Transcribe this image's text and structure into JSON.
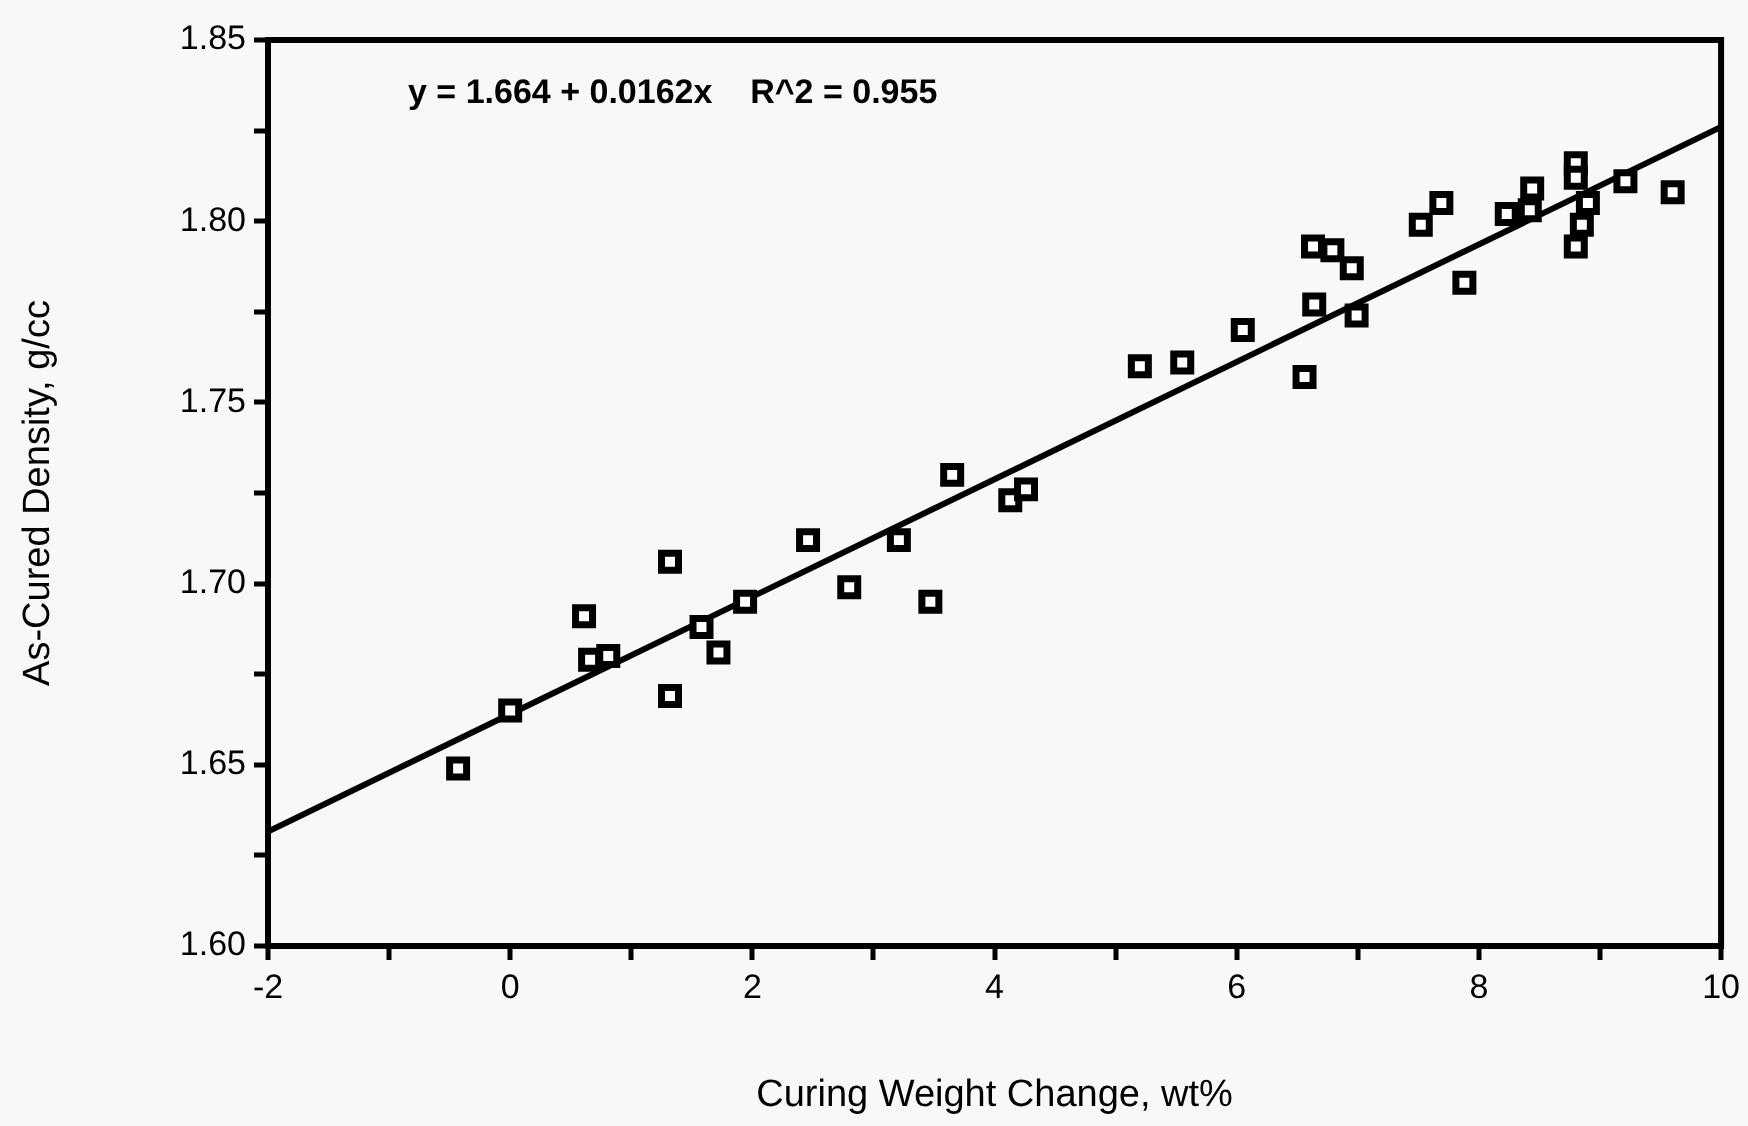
{
  "chart_data": {
    "type": "scatter",
    "xlabel": "Curing Weight Change, wt%",
    "ylabel": "As-Cured Density, g/cc",
    "annotations": [
      "y = 1.664 + 0.0162x    R^2 = 0.955"
    ],
    "xlim": [
      -2,
      10
    ],
    "xticks": [
      -2,
      {
        "value": -1,
        "label": null
      },
      0,
      {
        "value": 1,
        "label": null
      },
      2,
      {
        "value": 3,
        "label": null
      },
      4,
      {
        "value": 5,
        "label": null
      },
      6,
      {
        "value": 7,
        "label": null
      },
      8,
      {
        "value": 9,
        "label": null
      },
      10
    ],
    "ylim": [
      1.6,
      1.85
    ],
    "yticks": [
      {
        "value": 1.6,
        "label": "1.60"
      },
      {
        "value": 1.625,
        "label": null
      },
      {
        "value": 1.65,
        "label": "1.65"
      },
      {
        "value": 1.675,
        "label": null
      },
      {
        "value": 1.7,
        "label": "1.70"
      },
      {
        "value": 1.725,
        "label": null
      },
      {
        "value": 1.75,
        "label": "1.75"
      },
      {
        "value": 1.775,
        "label": null
      },
      {
        "value": 1.8,
        "label": "1.80"
      },
      {
        "value": 1.825,
        "label": null
      },
      {
        "value": 1.85,
        "label": "1.85"
      }
    ],
    "grid": false,
    "legend": false,
    "series": [
      {
        "color": "#000000",
        "marker": "square",
        "x": [
          -0.43,
          0.0,
          0.61,
          0.66,
          0.81,
          1.32,
          1.32,
          1.58,
          1.72,
          1.94,
          2.46,
          2.8,
          3.21,
          3.47,
          3.65,
          4.13,
          4.26,
          5.2,
          5.55,
          6.05,
          6.56,
          6.64,
          6.99,
          6.63,
          6.79,
          6.95,
          7.88,
          7.52,
          7.69,
          8.23,
          8.42,
          8.44,
          8.9,
          8.85,
          8.8,
          8.8,
          8.8,
          9.21,
          9.6
        ],
        "values": [
          1.649,
          1.665,
          1.691,
          1.679,
          1.68,
          1.706,
          1.669,
          1.688,
          1.681,
          1.695,
          1.712,
          1.699,
          1.712,
          1.695,
          1.73,
          1.723,
          1.726,
          1.76,
          1.761,
          1.77,
          1.757,
          1.777,
          1.774,
          1.793,
          1.792,
          1.787,
          1.783,
          1.799,
          1.805,
          1.802,
          1.803,
          1.809,
          1.805,
          1.799,
          1.793,
          1.816,
          1.812,
          1.811,
          1.808
        ]
      },
      {
        "type": "line",
        "color": "#000000",
        "marker": "none",
        "line_style": "solid",
        "x": [
          -2,
          10
        ],
        "values": [
          1.6316,
          1.826
        ]
      }
    ]
  }
}
